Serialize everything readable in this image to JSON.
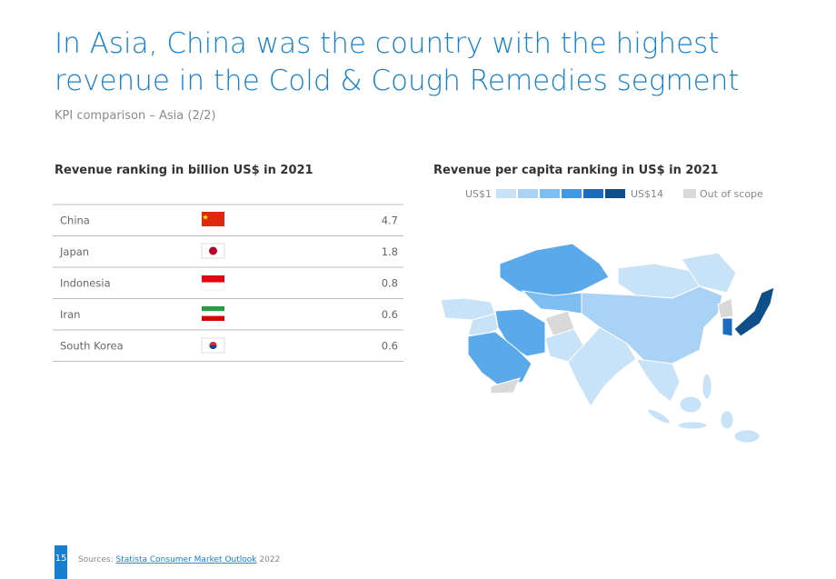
{
  "header": {
    "title_lines": [
      "In Asia, China was the country with the highest",
      "revenue in the Cold & Cough Remedies segment"
    ],
    "subtitle": "KPI comparison – Asia (2/2)"
  },
  "table": {
    "title": "Revenue ranking in billion US$ in 2021",
    "rows": [
      [
        "China",
        "4.7"
      ],
      [
        "Japan",
        "1.8"
      ],
      [
        "Indonesia",
        "0.8"
      ],
      [
        "Iran",
        "0.6"
      ],
      [
        "South Korea",
        "0.6"
      ]
    ]
  },
  "map": {
    "title": "Revenue per capita ranking in US$ in 2021",
    "legend_low": "US$1",
    "legend_high": "US$14",
    "legend_out": "Out of scope"
  },
  "footer": {
    "page": "15",
    "sources_label": "Sources:",
    "source_link": "Statista Consumer Market Outlook",
    "source_year": "2022"
  }
}
